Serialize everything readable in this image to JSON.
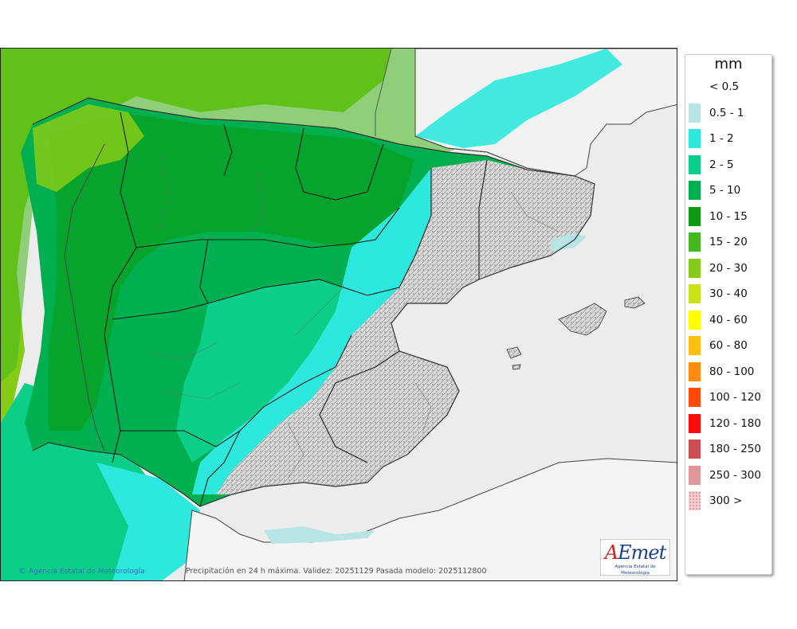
{
  "map": {
    "credit": "Agencia Estatal de Meteorología",
    "caption": "Precipitación en 24 h máxima. Validez: 20251129 Pasada modelo: 2025112800",
    "logo_main": "AEmet",
    "logo_sub": "Agencia Estatal de Meteorología"
  },
  "legend": {
    "title": "mm",
    "items": [
      {
        "label": "< 0.5",
        "color": "#ffffff"
      },
      {
        "label": "0.5 - 1",
        "color": "#b8e4e6"
      },
      {
        "label": "1 - 2",
        "color": "#2de8dc"
      },
      {
        "label": "2 - 5",
        "color": "#0bcf88"
      },
      {
        "label": "5 - 10",
        "color": "#00b050"
      },
      {
        "label": "10 - 15",
        "color": "#0b9a10"
      },
      {
        "label": "15 - 20",
        "color": "#44b81e"
      },
      {
        "label": "20 - 30",
        "color": "#86cc16"
      },
      {
        "label": "30 - 40",
        "color": "#c8e418"
      },
      {
        "label": "40 - 60",
        "color": "#ffff00"
      },
      {
        "label": "60 - 80",
        "color": "#ffbe12"
      },
      {
        "label": "80 - 100",
        "color": "#ff8a0c"
      },
      {
        "label": "100 - 120",
        "color": "#ff4a0a"
      },
      {
        "label": "120 - 180",
        "color": "#ff0b0b"
      },
      {
        "label": "180 - 250",
        "color": "#cd4d54"
      },
      {
        "label": "250 - 300",
        "color": "#e1969a"
      },
      {
        "label": "300 >",
        "color": "#f2cdd0"
      }
    ]
  }
}
